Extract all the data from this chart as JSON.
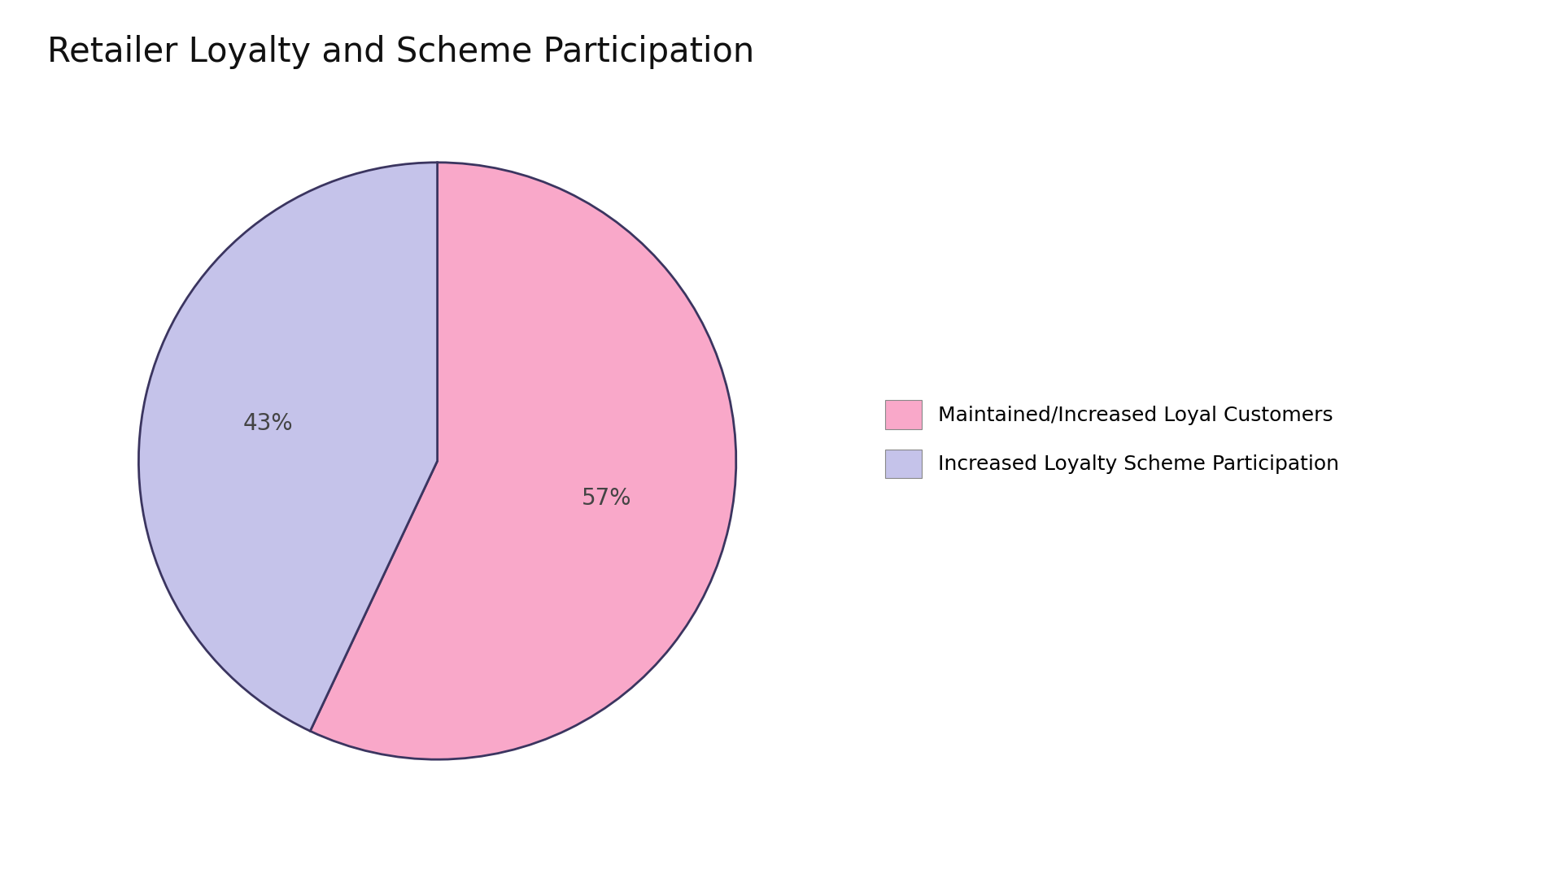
{
  "title": "Retailer Loyalty and Scheme Participation",
  "slices": [
    57,
    43
  ],
  "labels": [
    "Maintained/Increased Loyal Customers",
    "Increased Loyalty Scheme Participation"
  ],
  "colors": [
    "#F9A8C9",
    "#C5C3EA"
  ],
  "pct_labels": [
    "57%",
    "43%"
  ],
  "edge_color": "#3B3560",
  "edge_width": 2.0,
  "background_color": "#FFFFFF",
  "title_fontsize": 30,
  "title_color": "#111111",
  "pct_fontsize": 20,
  "legend_fontsize": 18,
  "startangle": 90
}
